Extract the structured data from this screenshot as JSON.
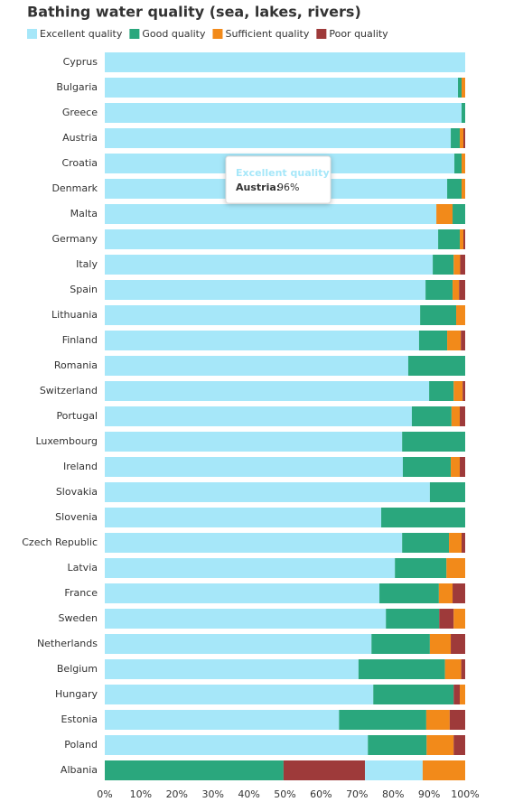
{
  "chart_data": {
    "type": "stacked-bar-horizontal",
    "title": "Bathing water quality (sea, lakes, rivers)",
    "categories": [
      "Cyprus",
      "Bulgaria",
      "Greece",
      "Austria",
      "Croatia",
      "Denmark",
      "Malta",
      "Germany",
      "Italy",
      "Spain",
      "Lithuania",
      "Finland",
      "Romania",
      "Switzerland",
      "Portugal",
      "Luxembourg",
      "Ireland",
      "Slovakia",
      "Slovenia",
      "Czech Republic",
      "Latvia",
      "France",
      "Sweden",
      "Netherlands",
      "Belgium",
      "Hungary",
      "Estonia",
      "Poland",
      "Albania"
    ],
    "series": [
      {
        "name": "Excellent quality",
        "color": "#a6e7f9",
        "values": [
          100,
          98,
          99,
          96,
          97,
          95,
          92,
          92.5,
          91,
          89,
          87.5,
          87.2,
          84.2,
          90,
          85.2,
          82.5,
          82.7,
          90.2,
          76.7,
          82.5,
          80.5,
          76.2,
          78,
          74,
          70.4,
          74.5,
          65,
          73,
          16
        ]
      },
      {
        "name": "Good quality",
        "color": "#2aa77d",
        "values": [
          0,
          1,
          1,
          2.5,
          2,
          4,
          3.5,
          6,
          5.8,
          7.5,
          10,
          7.8,
          15.8,
          6.8,
          11,
          17.5,
          13.3,
          9.8,
          23.3,
          13,
          14.3,
          16.5,
          14.8,
          16.2,
          24,
          22.3,
          24.2,
          16.3,
          49.6
        ]
      },
      {
        "name": "Sufficient quality",
        "color": "#f28a1a",
        "values": [
          0,
          1,
          0,
          1,
          1,
          1,
          4.5,
          1,
          1.8,
          1.8,
          2.5,
          3.8,
          0,
          2.5,
          2.3,
          0,
          2.5,
          0,
          0,
          3.5,
          5.2,
          3.8,
          3.2,
          5.8,
          4.5,
          1.5,
          6.5,
          7.5,
          11.8
        ]
      },
      {
        "name": "Poor quality",
        "color": "#9e3a3a",
        "values": [
          0,
          0,
          0,
          0.5,
          0,
          0,
          0,
          0.5,
          1.4,
          1.7,
          0,
          1.2,
          0,
          0.7,
          1.5,
          0,
          1.5,
          0,
          0,
          1,
          0,
          3.5,
          4,
          4,
          1.1,
          1.7,
          4.3,
          3.2,
          22.6
        ]
      }
    ],
    "xlim": [
      0,
      100
    ],
    "xticks": [
      {
        "value": 0,
        "label": "0%"
      },
      {
        "value": 10,
        "label": "10%"
      },
      {
        "value": 20,
        "label": "20%"
      },
      {
        "value": 30,
        "label": "30%"
      },
      {
        "value": 40,
        "label": "40%"
      },
      {
        "value": 50,
        "label": "50%"
      },
      {
        "value": 60,
        "label": "60%"
      },
      {
        "value": 70,
        "label": "70%"
      },
      {
        "value": 80,
        "label": "80%"
      },
      {
        "value": 90,
        "label": "90%"
      },
      {
        "value": 100,
        "label": "100%"
      }
    ],
    "legend": "top-left",
    "tooltip": {
      "title": "Excellent quality",
      "label": "Austria:",
      "value": "96%"
    }
  }
}
